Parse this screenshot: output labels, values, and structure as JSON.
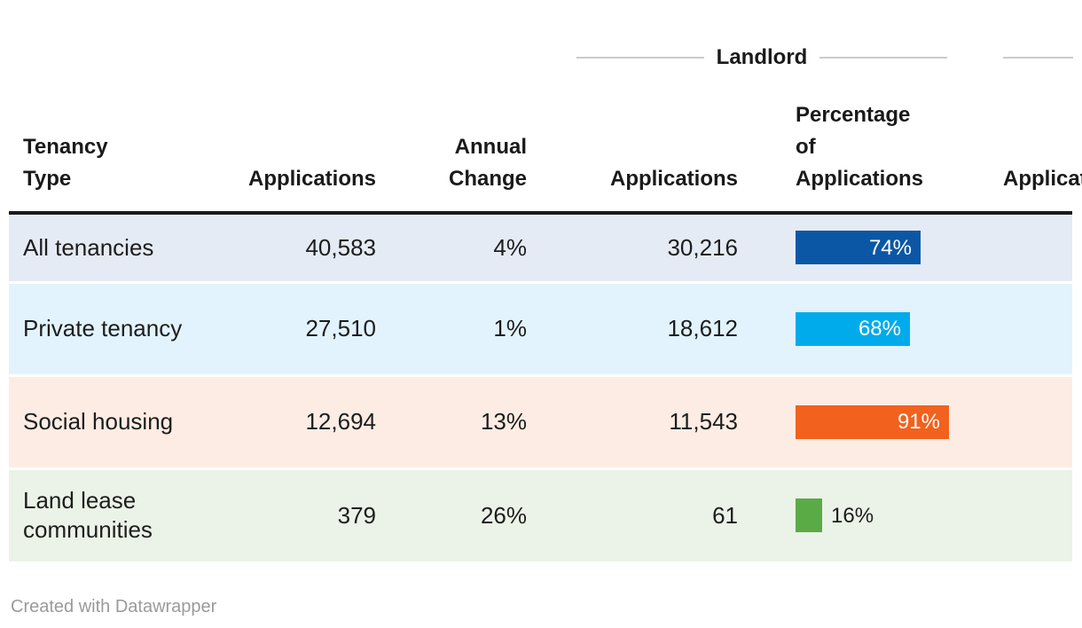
{
  "chart_data": {
    "type": "table",
    "group_headers": [
      {
        "label": "Landlord"
      },
      {
        "label": ""
      }
    ],
    "columns": [
      "Tenancy Type",
      "Applications",
      "Annual Change",
      "Applications",
      "Percentage of Applications",
      "Applications"
    ],
    "rows": [
      {
        "tenancy_type": "All tenancies",
        "applications": "40,583",
        "annual_change": "4%",
        "landlord_applications": "30,216",
        "landlord_pct": 74,
        "landlord_pct_label": "74%",
        "row_bg": "#e5ebf4",
        "bar_color": "#0b57a5"
      },
      {
        "tenancy_type": "Private tenancy",
        "applications": "27,510",
        "annual_change": "1%",
        "landlord_applications": "18,612",
        "landlord_pct": 68,
        "landlord_pct_label": "68%",
        "row_bg": "#e2f3fd",
        "bar_color": "#00abeb"
      },
      {
        "tenancy_type": "Social housing",
        "applications": "12,694",
        "annual_change": "13%",
        "landlord_applications": "11,543",
        "landlord_pct": 91,
        "landlord_pct_label": "91%",
        "row_bg": "#fdece4",
        "bar_color": "#f2611d"
      },
      {
        "tenancy_type": "Land lease communities",
        "applications": "379",
        "annual_change": "26%",
        "landlord_applications": "61",
        "landlord_pct": 16,
        "landlord_pct_label": "16%",
        "row_bg": "#ebf2e7",
        "bar_color": "#5aab46"
      }
    ]
  },
  "footer": {
    "credit": "Created with Datawrapper"
  },
  "colors": {
    "header_border": "#1a1a1a",
    "group_line": "#cbcbcd",
    "text": "#1d1d1d",
    "credit_text": "#9a9a9a"
  }
}
